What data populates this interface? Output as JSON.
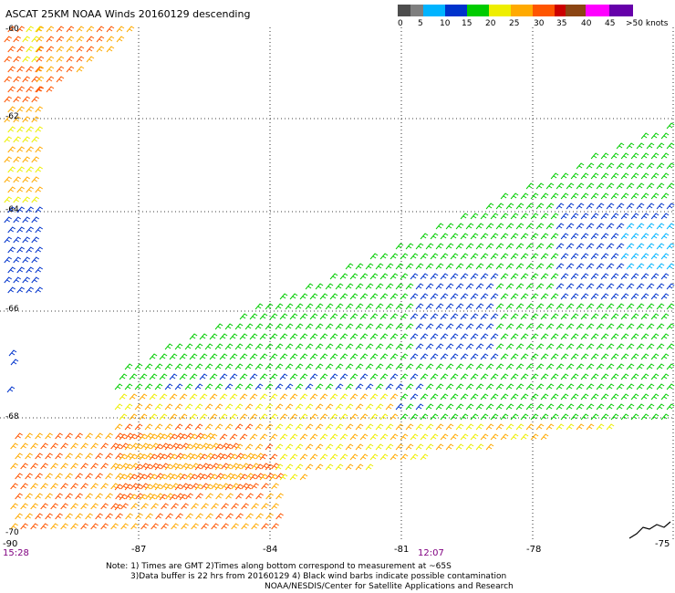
{
  "title": "ASCAT 25KM NOAA Winds 20160129 descending",
  "legend": {
    "labels": [
      "0",
      "5",
      "10",
      "15",
      "20",
      "25",
      "30",
      "35",
      "40",
      "45",
      ">50 knots"
    ],
    "colors": [
      "#4d4d4d",
      "#7f7f7f",
      "#00b4ff",
      "#0033cc",
      "#00cc00",
      "#eeee00",
      "#ffaa00",
      "#ff5500",
      "#cc0000",
      "#8b4513",
      "#ff00ff",
      "#6600aa"
    ]
  },
  "lat_labels": [
    "-60",
    "-62",
    "-64",
    "-66",
    "-68",
    "-70"
  ],
  "lon_labels": [
    "-90",
    "-87",
    "-84",
    "-81",
    "-78",
    "-75"
  ],
  "times": [
    "15:28",
    "12:07"
  ],
  "notes": [
    "Note: 1) Times are GMT 2)Times along bottom correspond to measurement at ~65S",
    "3)Data buffer is 22 hrs from 20160129 4) Black wind barbs indicate possible contamination",
    "NOAA/NESDIS/Center for Satellite Applications and Research"
  ]
}
